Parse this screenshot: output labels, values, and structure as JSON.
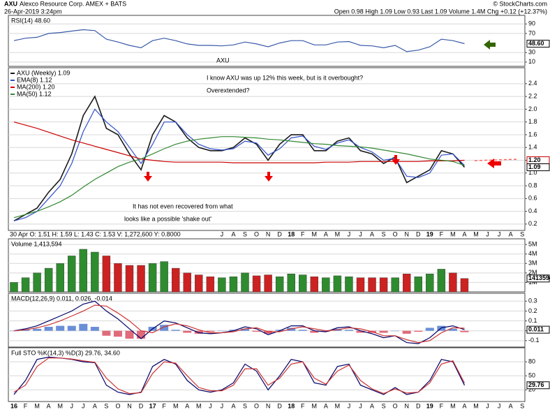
{
  "header": {
    "symbol": "AXU",
    "name": "Alexco Resource Corp. AMEX + BATS",
    "date": "26-Apr-2019 3:24pm",
    "quote": "Open 0.98 High 1.09 Low 0.93 Last 1.09 Volume 1.4M Chg +0.12 (+12.37%)",
    "source": "© StockCharts.com"
  },
  "chart_data": [
    {
      "type": "line",
      "title": "AXU (Weekly) 1.09",
      "info": "30 Apr O: 1.51 H: 1.59 L: 1.43 C: 1.53 V: 1,272,600 Y: 0.8000",
      "categories": [
        "16",
        "F",
        "M",
        "A",
        "M",
        "J",
        "J",
        "A",
        "S",
        "O",
        "N",
        "D",
        "17",
        "F",
        "M",
        "A",
        "M",
        "J",
        "J",
        "A",
        "S",
        "O",
        "N",
        "D",
        "18",
        "F",
        "M",
        "A",
        "M",
        "J",
        "J",
        "A",
        "S",
        "O",
        "N",
        "D",
        "19",
        "F",
        "M",
        "A",
        "M",
        "J",
        "J",
        "A",
        "S"
      ],
      "ylim": [
        0.1,
        2.65
      ],
      "yticks": [
        0.2,
        0.4,
        0.6,
        0.8,
        {
          "value": 1,
          "label": "1.0"
        },
        1.2,
        1.4,
        1.6,
        1.8,
        {
          "value": 2,
          "label": "2.0"
        },
        2.2,
        2.4
      ],
      "grid": true,
      "series": [
        {
          "name": "AXU (Weekly) 1.09",
          "color": "#1a1a1a",
          "values": [
            0.25,
            0.35,
            0.45,
            0.7,
            0.9,
            1.3,
            1.9,
            2.2,
            1.7,
            1.6,
            1.3,
            1.05,
            1.6,
            1.9,
            1.8,
            1.55,
            1.4,
            1.35,
            1.35,
            1.4,
            1.55,
            1.45,
            1.2,
            1.45,
            1.6,
            1.6,
            1.35,
            1.35,
            1.5,
            1.55,
            1.35,
            1.3,
            1.15,
            1.25,
            0.85,
            0.95,
            1.05,
            1.35,
            1.3,
            1.09,
            null,
            null,
            null,
            null,
            null
          ]
        },
        {
          "name": "EMA(8) 1.12",
          "color": "#2f4fc8",
          "values": [
            0.25,
            0.3,
            0.4,
            0.6,
            0.8,
            1.15,
            1.65,
            2.0,
            1.8,
            1.65,
            1.4,
            1.15,
            1.45,
            1.8,
            1.8,
            1.6,
            1.45,
            1.38,
            1.36,
            1.38,
            1.5,
            1.47,
            1.28,
            1.38,
            1.55,
            1.58,
            1.42,
            1.37,
            1.47,
            1.52,
            1.4,
            1.33,
            1.2,
            1.23,
            0.95,
            0.93,
            1.0,
            1.28,
            1.3,
            1.12,
            null,
            null,
            null,
            null,
            null
          ]
        },
        {
          "name": "MA(200) 1.20",
          "color": "#cc0000",
          "values": [
            1.8,
            1.75,
            1.7,
            1.64,
            1.58,
            1.52,
            1.47,
            1.42,
            1.37,
            1.32,
            1.27,
            1.22,
            1.2,
            1.18,
            1.17,
            1.17,
            1.17,
            1.17,
            1.17,
            1.16,
            1.16,
            1.16,
            1.16,
            1.16,
            1.16,
            1.16,
            1.16,
            1.17,
            1.17,
            1.17,
            1.18,
            1.18,
            1.18,
            1.18,
            1.18,
            1.18,
            1.19,
            1.19,
            1.19,
            1.2,
            null,
            null,
            null,
            null,
            null
          ]
        },
        {
          "name": "MA(50) 1.12",
          "color": "#338833",
          "values": [
            0.3,
            0.35,
            0.4,
            0.47,
            0.55,
            0.65,
            0.78,
            0.9,
            1.0,
            1.1,
            1.17,
            1.22,
            1.3,
            1.38,
            1.45,
            1.5,
            1.53,
            1.55,
            1.57,
            1.57,
            1.56,
            1.55,
            1.53,
            1.52,
            1.5,
            1.48,
            1.46,
            1.45,
            1.43,
            1.42,
            1.41,
            1.39,
            1.36,
            1.33,
            1.3,
            1.26,
            1.22,
            1.2,
            1.18,
            1.12,
            null,
            null,
            null,
            null,
            null
          ]
        }
      ],
      "markers": [
        {
          "value": 1.2,
          "label": "1.20",
          "color": "#cc0000"
        },
        {
          "value": 1.09,
          "label": "1.09",
          "color": "#000000"
        }
      ],
      "annotations": [
        {
          "text": "AXU",
          "color": "#2a7bd0"
        },
        {
          "text": "I know AXU was up 12% this week,  but is it overbought?",
          "color": "#2233cc"
        },
        {
          "text": "Overextended?",
          "color": "#2233cc"
        },
        {
          "text": "It has not even recovered from what",
          "color": "#ff22cc"
        },
        {
          "text": "looks like a possible 'shake out'",
          "color": "#ff22cc"
        }
      ]
    },
    {
      "type": "line",
      "title": "RSI(14) 48.60",
      "ylim": [
        1,
        108
      ],
      "yticks": [
        10,
        30,
        70,
        90
      ],
      "grid": true,
      "series": [
        {
          "color": "#3a5aa8",
          "values": [
            55,
            60,
            62,
            70,
            72,
            75,
            78,
            76,
            58,
            52,
            45,
            40,
            55,
            60,
            55,
            48,
            45,
            45,
            44,
            46,
            52,
            48,
            42,
            50,
            55,
            55,
            46,
            46,
            52,
            53,
            45,
            44,
            40,
            45,
            32,
            35,
            42,
            58,
            55,
            48.6,
            null,
            null,
            null,
            null,
            null
          ]
        }
      ],
      "markers": [
        {
          "value": 48.6,
          "label": "48.60",
          "color": "#000000"
        }
      ]
    },
    {
      "type": "bar",
      "title": "Volume 1,413,594",
      "ylim": [
        0,
        5600000
      ],
      "yticks": [
        {
          "value": 1000000,
          "label": "1M"
        },
        {
          "value": 2000000,
          "label": "2M"
        },
        {
          "value": 3000000,
          "label": "3M"
        },
        {
          "value": 4000000,
          "label": "4M"
        },
        {
          "value": 5000000,
          "label": "5M"
        }
      ],
      "grid": true,
      "up_color": "#2e8b2e",
      "down_color": "#cc2222",
      "series": [
        {
          "values": [
            1000000,
            1500000,
            2000000,
            2500000,
            3000000,
            3800000,
            4500000,
            4200000,
            3800000,
            3000000,
            2800000,
            2800000,
            3000000,
            3200000,
            2500000,
            2000000,
            1800000,
            1600000,
            1500000,
            1600000,
            2000000,
            1700000,
            1800000,
            1600000,
            1900000,
            1800000,
            1600000,
            1500000,
            1700000,
            1600000,
            1500000,
            1500000,
            1500000,
            1500000,
            1900000,
            1600000,
            1900000,
            2400000,
            2000000,
            1413594,
            null,
            null,
            null,
            null,
            null
          ]
        }
      ],
      "markers": [
        {
          "value": 1413594,
          "label": "1413594",
          "color": "#000000"
        }
      ]
    },
    {
      "type": "line",
      "title": "MACD(12,26,9) 0.011, 0.026, -0.014",
      "ylim": [
        -0.165,
        0.38
      ],
      "yticks": [
        0.3,
        0.2,
        0.1,
        {
          "value": 0,
          "label": "0.0"
        },
        -0.1
      ],
      "grid": true,
      "series": [
        {
          "style": "bar",
          "color": "#6a8fd8",
          "negative_color": "#e06a7a",
          "values": [
            0,
            0.01,
            0.02,
            0.04,
            0.05,
            0.05,
            0.07,
            0.04,
            -0.05,
            -0.06,
            -0.08,
            -0.08,
            0.04,
            0.06,
            0.01,
            -0.02,
            -0.03,
            -0.01,
            0,
            0.01,
            0.02,
            -0.01,
            -0.03,
            0.01,
            0.03,
            0.01,
            -0.02,
            -0.01,
            0.02,
            0.01,
            -0.02,
            -0.02,
            -0.02,
            0,
            -0.03,
            -0.01,
            0.03,
            0.05,
            0.02,
            -0.014,
            null,
            null,
            null,
            null,
            null
          ]
        },
        {
          "color": "#000066",
          "values": [
            0.0,
            0.02,
            0.05,
            0.1,
            0.15,
            0.2,
            0.27,
            0.3,
            0.2,
            0.12,
            0.02,
            -0.08,
            0.02,
            0.1,
            0.08,
            0.03,
            -0.02,
            -0.03,
            -0.02,
            0.0,
            0.04,
            0.02,
            -0.04,
            0.0,
            0.05,
            0.05,
            0.0,
            -0.01,
            0.03,
            0.04,
            0.0,
            -0.03,
            -0.07,
            -0.05,
            -0.12,
            -0.13,
            -0.07,
            0.03,
            0.05,
            0.011,
            null,
            null,
            null,
            null,
            null
          ]
        },
        {
          "color": "#cc3333",
          "values": [
            0.0,
            0.01,
            0.03,
            0.06,
            0.1,
            0.15,
            0.2,
            0.26,
            0.25,
            0.18,
            0.1,
            0.0,
            -0.02,
            0.04,
            0.07,
            0.05,
            0.01,
            -0.02,
            -0.02,
            -0.01,
            0.02,
            0.03,
            -0.01,
            -0.01,
            0.02,
            0.04,
            0.02,
            0.0,
            0.01,
            0.03,
            0.02,
            -0.01,
            -0.05,
            -0.05,
            -0.09,
            -0.12,
            -0.1,
            -0.02,
            0.03,
            0.026,
            null,
            null,
            null,
            null,
            null
          ]
        }
      ],
      "markers": [
        {
          "value": 0.011,
          "label": "0.011",
          "color": "#000000"
        }
      ]
    },
    {
      "type": "line",
      "title": "Full STO %K(14,3) %D(3) 29.76, 34.60",
      "ylim": [
        -5,
        110
      ],
      "yticks": [
        20,
        50,
        80
      ],
      "grid": true,
      "series": [
        {
          "color": "#000066",
          "values": [
            10,
            40,
            85,
            90,
            88,
            85,
            80,
            78,
            30,
            15,
            10,
            15,
            70,
            85,
            75,
            40,
            20,
            15,
            20,
            35,
            75,
            60,
            20,
            50,
            85,
            80,
            35,
            30,
            70,
            75,
            30,
            20,
            10,
            25,
            10,
            15,
            40,
            85,
            80,
            29.76,
            null,
            null,
            null,
            null,
            null
          ]
        },
        {
          "color": "#cc3333",
          "values": [
            15,
            30,
            70,
            88,
            88,
            86,
            82,
            79,
            45,
            22,
            12,
            14,
            55,
            80,
            77,
            50,
            25,
            18,
            18,
            30,
            65,
            65,
            30,
            45,
            75,
            80,
            45,
            32,
            60,
            73,
            40,
            22,
            12,
            22,
            13,
            15,
            35,
            75,
            82,
            34.6,
            null,
            null,
            null,
            null,
            null
          ]
        }
      ],
      "markers": [
        {
          "value": 29.76,
          "label": "29.76",
          "color": "#000000"
        }
      ]
    }
  ]
}
